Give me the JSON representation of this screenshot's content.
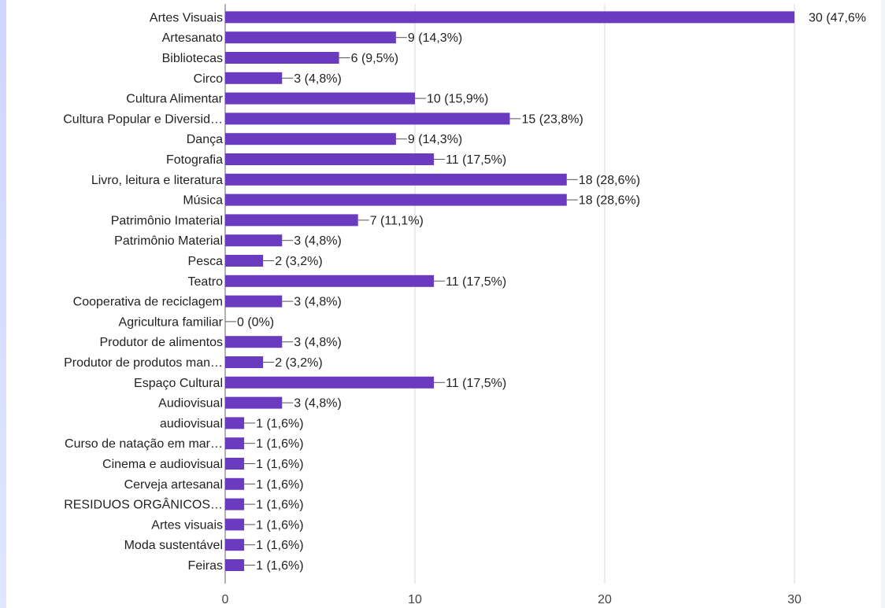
{
  "chart_data": {
    "type": "bar",
    "orientation": "horizontal",
    "categories": [
      "Artes Visuais",
      "Artesanato",
      "Bibliotecas",
      "Circo",
      "Cultura Alimentar",
      "Cultura Popular e Diversid…",
      "Dança",
      "Fotografia",
      "Livro, leitura e literatura",
      "Música",
      "Patrimônio Imaterial",
      "Patrimônio Material",
      "Pesca",
      "Teatro",
      "Cooperativa de reciclagem",
      "Agricultura familiar",
      "Produtor de alimentos",
      "Produtor de produtos man…",
      "Espaço Cultural",
      "Audiovisual",
      "audiovisual",
      "Curso de natação em mar…",
      "Cinema e audiovisual",
      "Cerveja artesanal",
      "RESIDUOS ORGÂNICOS…",
      "Artes visuais",
      "Moda sustentável",
      "Feiras"
    ],
    "values": [
      30,
      9,
      6,
      3,
      10,
      15,
      9,
      11,
      18,
      18,
      7,
      3,
      2,
      11,
      3,
      0,
      3,
      2,
      11,
      3,
      1,
      1,
      1,
      1,
      1,
      1,
      1,
      1
    ],
    "value_labels": [
      "30 (47,6%",
      "9 (14,3%)",
      "6 (9,5%)",
      "3 (4,8%)",
      "10 (15,9%)",
      "15 (23,8%)",
      "9 (14,3%)",
      "11 (17,5%)",
      "18 (28,6%)",
      "18 (28,6%)",
      "7 (11,1%)",
      "3 (4,8%)",
      "2 (3,2%)",
      "11 (17,5%)",
      "3 (4,8%)",
      "0 (0%)",
      "3 (4,8%)",
      "2 (3,2%)",
      "11 (17,5%)",
      "3 (4,8%)",
      "1 (1,6%)",
      "1 (1,6%)",
      "1 (1,6%)",
      "1 (1,6%)",
      "1 (1,6%)",
      "1 (1,6%)",
      "1 (1,6%)",
      "1 (1,6%)"
    ],
    "xticks": [
      "0",
      "10",
      "20",
      "30"
    ],
    "xlim": [
      0,
      30
    ],
    "grid": true,
    "title": "",
    "xlabel": "",
    "ylabel": "",
    "bar_color": "#6a3bbf",
    "grid_color": "#d9d9d9",
    "axis_color": "#666666"
  }
}
